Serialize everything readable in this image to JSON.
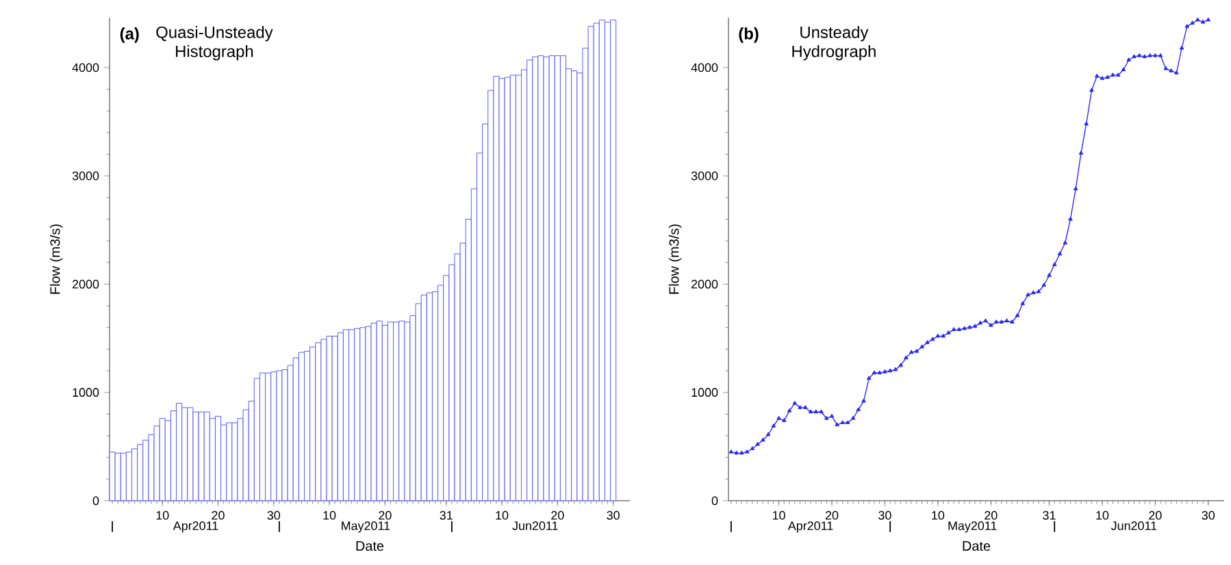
{
  "chart_data": [
    {
      "type": "bar",
      "title": "(a)",
      "subtitle": "Quasi-Unsteady Histograph",
      "xlabel": "Date",
      "ylabel": "Flow  (m3/s)",
      "color": "#5a5aff",
      "x": [
        "2011-04-01",
        "2011-04-02",
        "2011-04-03",
        "2011-04-04",
        "2011-04-05",
        "2011-04-06",
        "2011-04-07",
        "2011-04-08",
        "2011-04-09",
        "2011-04-10",
        "2011-04-11",
        "2011-04-12",
        "2011-04-13",
        "2011-04-14",
        "2011-04-15",
        "2011-04-16",
        "2011-04-17",
        "2011-04-18",
        "2011-04-19",
        "2011-04-20",
        "2011-04-21",
        "2011-04-22",
        "2011-04-23",
        "2011-04-24",
        "2011-04-25",
        "2011-04-26",
        "2011-04-27",
        "2011-04-28",
        "2011-04-29",
        "2011-04-30",
        "2011-05-01",
        "2011-05-02",
        "2011-05-03",
        "2011-05-04",
        "2011-05-05",
        "2011-05-06",
        "2011-05-07",
        "2011-05-08",
        "2011-05-09",
        "2011-05-10",
        "2011-05-11",
        "2011-05-12",
        "2011-05-13",
        "2011-05-14",
        "2011-05-15",
        "2011-05-16",
        "2011-05-17",
        "2011-05-18",
        "2011-05-19",
        "2011-05-20",
        "2011-05-21",
        "2011-05-22",
        "2011-05-23",
        "2011-05-24",
        "2011-05-25",
        "2011-05-26",
        "2011-05-27",
        "2011-05-28",
        "2011-05-29",
        "2011-05-30",
        "2011-05-31",
        "2011-06-01",
        "2011-06-02",
        "2011-06-03",
        "2011-06-04",
        "2011-06-05",
        "2011-06-06",
        "2011-06-07",
        "2011-06-08",
        "2011-06-09",
        "2011-06-10",
        "2011-06-11",
        "2011-06-12",
        "2011-06-13",
        "2011-06-14",
        "2011-06-15",
        "2011-06-16",
        "2011-06-17",
        "2011-06-18",
        "2011-06-19",
        "2011-06-20",
        "2011-06-21",
        "2011-06-22",
        "2011-06-23",
        "2011-06-24",
        "2011-06-25",
        "2011-06-26",
        "2011-06-27",
        "2011-06-28",
        "2011-06-29",
        "2011-06-30"
      ],
      "values": [
        450,
        440,
        440,
        450,
        480,
        520,
        560,
        610,
        690,
        760,
        740,
        830,
        900,
        860,
        860,
        820,
        820,
        820,
        760,
        780,
        700,
        720,
        720,
        760,
        840,
        920,
        1130,
        1180,
        1180,
        1190,
        1200,
        1210,
        1250,
        1320,
        1370,
        1380,
        1420,
        1460,
        1490,
        1520,
        1520,
        1550,
        1580,
        1580,
        1590,
        1600,
        1610,
        1640,
        1660,
        1620,
        1650,
        1650,
        1660,
        1650,
        1710,
        1820,
        1900,
        1920,
        1930,
        1990,
        2080,
        2180,
        2280,
        2380,
        2600,
        2880,
        3210,
        3480,
        3790,
        3920,
        3900,
        3910,
        3930,
        3930,
        3980,
        4070,
        4100,
        4110,
        4100,
        4110,
        4110,
        4110,
        3990,
        3970,
        3950,
        4180,
        4380,
        4410,
        4440,
        4420,
        4440
      ],
      "xlim": [
        "2011-03-31T12:00",
        "2011-07-03"
      ],
      "ylim": [
        0,
        4460
      ],
      "yticks": [
        0,
        1000,
        2000,
        3000,
        4000
      ],
      "xticks": [
        {
          "value": "2011-04-10",
          "label": "10"
        },
        {
          "value": "2011-04-20",
          "label": "20"
        },
        {
          "value": "2011-04-30",
          "label": "30"
        },
        {
          "value": "2011-05-10",
          "label": "10"
        },
        {
          "value": "2011-05-20",
          "label": "20"
        },
        {
          "value": "2011-05-31",
          "label": "31"
        },
        {
          "value": "2011-06-10",
          "label": "10"
        },
        {
          "value": "2011-06-20",
          "label": "20"
        },
        {
          "value": "2011-06-30",
          "label": "30"
        },
        {
          "value": "2011-04-01",
          "label": null
        },
        {
          "value": "2011-05-01",
          "label": null
        },
        {
          "value": "2011-06-01",
          "label": null
        }
      ],
      "annotations": [
        "Apr2011",
        "May2011",
        "Jun2011"
      ]
    },
    {
      "type": "line",
      "title": "(b)",
      "subtitle": "Unsteady Hydrograph",
      "xlabel": "Date",
      "ylabel": "Flow  (m3/s)",
      "color": "#2a2aff",
      "marker": "triangle",
      "x": [
        "2011-04-01",
        "2011-04-02",
        "2011-04-03",
        "2011-04-04",
        "2011-04-05",
        "2011-04-06",
        "2011-04-07",
        "2011-04-08",
        "2011-04-09",
        "2011-04-10",
        "2011-04-11",
        "2011-04-12",
        "2011-04-13",
        "2011-04-14",
        "2011-04-15",
        "2011-04-16",
        "2011-04-17",
        "2011-04-18",
        "2011-04-19",
        "2011-04-20",
        "2011-04-21",
        "2011-04-22",
        "2011-04-23",
        "2011-04-24",
        "2011-04-25",
        "2011-04-26",
        "2011-04-27",
        "2011-04-28",
        "2011-04-29",
        "2011-04-30",
        "2011-05-01",
        "2011-05-02",
        "2011-05-03",
        "2011-05-04",
        "2011-05-05",
        "2011-05-06",
        "2011-05-07",
        "2011-05-08",
        "2011-05-09",
        "2011-05-10",
        "2011-05-11",
        "2011-05-12",
        "2011-05-13",
        "2011-05-14",
        "2011-05-15",
        "2011-05-16",
        "2011-05-17",
        "2011-05-18",
        "2011-05-19",
        "2011-05-20",
        "2011-05-21",
        "2011-05-22",
        "2011-05-23",
        "2011-05-24",
        "2011-05-25",
        "2011-05-26",
        "2011-05-27",
        "2011-05-28",
        "2011-05-29",
        "2011-05-30",
        "2011-05-31",
        "2011-06-01",
        "2011-06-02",
        "2011-06-03",
        "2011-06-04",
        "2011-06-05",
        "2011-06-06",
        "2011-06-07",
        "2011-06-08",
        "2011-06-09",
        "2011-06-10",
        "2011-06-11",
        "2011-06-12",
        "2011-06-13",
        "2011-06-14",
        "2011-06-15",
        "2011-06-16",
        "2011-06-17",
        "2011-06-18",
        "2011-06-19",
        "2011-06-20",
        "2011-06-21",
        "2011-06-22",
        "2011-06-23",
        "2011-06-24",
        "2011-06-25",
        "2011-06-26",
        "2011-06-27",
        "2011-06-28",
        "2011-06-29",
        "2011-06-30"
      ],
      "values": [
        450,
        440,
        440,
        450,
        480,
        520,
        560,
        610,
        690,
        760,
        740,
        830,
        900,
        860,
        860,
        820,
        820,
        820,
        760,
        780,
        700,
        720,
        720,
        760,
        840,
        920,
        1130,
        1180,
        1180,
        1190,
        1200,
        1210,
        1250,
        1320,
        1370,
        1380,
        1420,
        1460,
        1490,
        1520,
        1520,
        1550,
        1580,
        1580,
        1590,
        1600,
        1610,
        1640,
        1660,
        1620,
        1650,
        1650,
        1660,
        1650,
        1710,
        1820,
        1900,
        1920,
        1930,
        1990,
        2080,
        2180,
        2280,
        2380,
        2600,
        2880,
        3210,
        3480,
        3790,
        3920,
        3900,
        3910,
        3930,
        3930,
        3980,
        4070,
        4100,
        4110,
        4100,
        4110,
        4110,
        4110,
        3990,
        3970,
        3950,
        4180,
        4380,
        4410,
        4440,
        4420,
        4440
      ],
      "xlim": [
        "2011-03-31T12:00",
        "2011-07-03"
      ],
      "ylim": [
        0,
        4460
      ],
      "yticks": [
        0,
        1000,
        2000,
        3000,
        4000
      ],
      "xticks": [
        {
          "value": "2011-04-10",
          "label": "10"
        },
        {
          "value": "2011-04-20",
          "label": "20"
        },
        {
          "value": "2011-04-30",
          "label": "30"
        },
        {
          "value": "2011-05-10",
          "label": "10"
        },
        {
          "value": "2011-05-20",
          "label": "20"
        },
        {
          "value": "2011-05-31",
          "label": "31"
        },
        {
          "value": "2011-06-10",
          "label": "10"
        },
        {
          "value": "2011-06-20",
          "label": "20"
        },
        {
          "value": "2011-06-30",
          "label": "30"
        },
        {
          "value": "2011-04-01",
          "label": null
        },
        {
          "value": "2011-05-01",
          "label": null
        },
        {
          "value": "2011-06-01",
          "label": null
        }
      ],
      "annotations": [
        "Apr2011",
        "May2011",
        "Jun2011"
      ]
    }
  ]
}
